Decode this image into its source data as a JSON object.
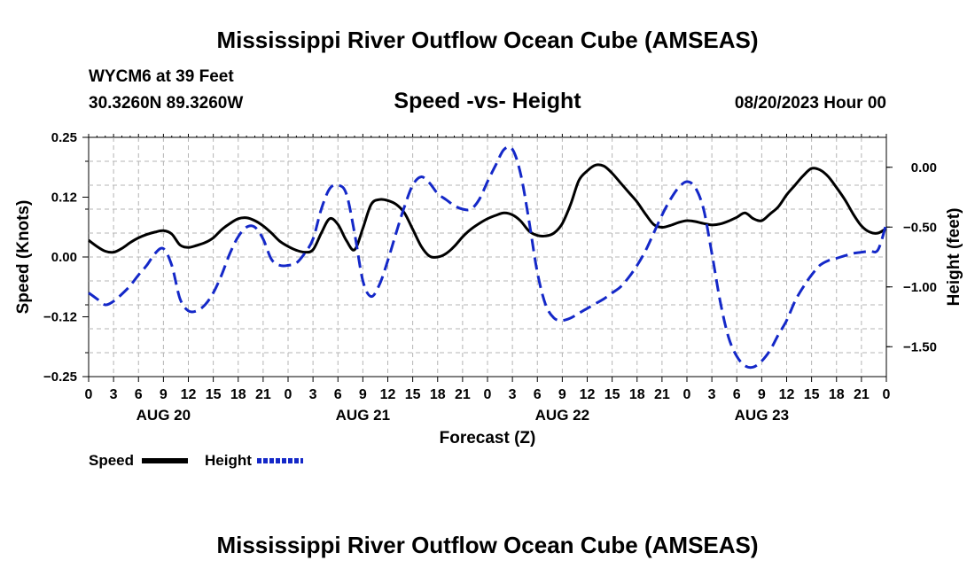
{
  "page": {
    "title_top": "Mississippi River Outflow Ocean Cube (AMSEAS)",
    "title_bottom": "Mississippi River Outflow Ocean Cube (AMSEAS)",
    "station_name": "WYCM6 at 39 Feet",
    "station_coords": "30.3260N  89.3260W",
    "subtitle": "Speed -vs- Height",
    "forecast_date": "08/20/2023 Hour 00"
  },
  "chart_data": {
    "type": "line",
    "title": "Speed -vs- Height",
    "xlabel": "Forecast (Z)",
    "ylabel_left": "Speed (Knots)",
    "ylabel_right": "Height (feet)",
    "x_range_hours": [
      0,
      96
    ],
    "ylim_left": [
      -0.25,
      0.25
    ],
    "ylim_right": [
      -1.75,
      0.25
    ],
    "left_ticks": [
      {
        "value": 0.25,
        "label": "0.25"
      },
      {
        "value": 0.125,
        "label": "0.12"
      },
      {
        "value": 0.0,
        "label": "0.00"
      },
      {
        "value": -0.125,
        "label": "−0.12"
      },
      {
        "value": -0.25,
        "label": "−0.25"
      }
    ],
    "right_ticks": [
      {
        "value": 0.0,
        "label": "0.00"
      },
      {
        "value": -0.5,
        "label": "−0.50"
      },
      {
        "value": -1.0,
        "label": "−1.00"
      },
      {
        "value": -1.5,
        "label": "−1.50"
      }
    ],
    "x_tick_labels": [
      "0",
      "3",
      "6",
      "9",
      "12",
      "15",
      "18",
      "21",
      "0",
      "3",
      "6",
      "9",
      "12",
      "15",
      "18",
      "21",
      "0",
      "3",
      "6",
      "9",
      "12",
      "15",
      "18",
      "21",
      "0",
      "3",
      "6",
      "9",
      "12",
      "15",
      "18",
      "21",
      "0"
    ],
    "day_labels": [
      {
        "label": "AUG 20",
        "hour": 9
      },
      {
        "label": "AUG 21",
        "hour": 33
      },
      {
        "label": "AUG 22",
        "hour": 57
      },
      {
        "label": "AUG 23",
        "hour": 81
      }
    ],
    "grid": true,
    "legend": {
      "position": "bottom-left"
    },
    "series": [
      {
        "name": "Speed",
        "axis": "left",
        "color": "#000000",
        "dash": "solid",
        "x": [
          0,
          1,
          2,
          3,
          4,
          5,
          6,
          7,
          8,
          9,
          10,
          11,
          12,
          13,
          14,
          15,
          16,
          17,
          18,
          19,
          20,
          21,
          22,
          23,
          24,
          25,
          26,
          27,
          28,
          29,
          30,
          31,
          32,
          33,
          34,
          35,
          36,
          37,
          38,
          39,
          40,
          41,
          42,
          43,
          44,
          45,
          46,
          47,
          48,
          49,
          50,
          51,
          52,
          53,
          54,
          55,
          56,
          57,
          58,
          59,
          60,
          61,
          62,
          63,
          64,
          65,
          66,
          67,
          68,
          69,
          70,
          71,
          72,
          73,
          74,
          75,
          76,
          77,
          78,
          79,
          80,
          81,
          82,
          83,
          84,
          85,
          86,
          87,
          88,
          89,
          90,
          91,
          92,
          93,
          94,
          95,
          96
        ],
        "values": [
          0.035,
          0.022,
          0.012,
          0.01,
          0.018,
          0.03,
          0.04,
          0.047,
          0.052,
          0.055,
          0.048,
          0.025,
          0.02,
          0.024,
          0.03,
          0.04,
          0.057,
          0.07,
          0.08,
          0.082,
          0.076,
          0.065,
          0.05,
          0.033,
          0.022,
          0.014,
          0.01,
          0.015,
          0.05,
          0.08,
          0.068,
          0.035,
          0.015,
          0.06,
          0.11,
          0.12,
          0.118,
          0.11,
          0.092,
          0.058,
          0.023,
          0.002,
          0.0,
          0.007,
          0.022,
          0.042,
          0.058,
          0.07,
          0.08,
          0.087,
          0.092,
          0.088,
          0.075,
          0.054,
          0.045,
          0.044,
          0.05,
          0.07,
          0.11,
          0.16,
          0.18,
          0.192,
          0.19,
          0.175,
          0.155,
          0.135,
          0.115,
          0.09,
          0.068,
          0.062,
          0.066,
          0.072,
          0.076,
          0.074,
          0.07,
          0.067,
          0.069,
          0.075,
          0.083,
          0.092,
          0.08,
          0.076,
          0.09,
          0.105,
          0.13,
          0.15,
          0.17,
          0.185,
          0.182,
          0.168,
          0.145,
          0.12,
          0.09,
          0.065,
          0.052,
          0.05,
          0.06
        ]
      },
      {
        "name": "Height",
        "axis": "right",
        "color": "#1428c8",
        "dash": "dashed",
        "x": [
          0,
          1,
          2,
          3,
          4,
          5,
          6,
          7,
          8,
          9,
          10,
          11,
          12,
          13,
          14,
          15,
          16,
          17,
          18,
          19,
          20,
          21,
          22,
          23,
          24,
          25,
          26,
          27,
          28,
          29,
          30,
          31,
          32,
          33,
          34,
          35,
          36,
          37,
          38,
          39,
          40,
          41,
          42,
          43,
          44,
          45,
          46,
          47,
          48,
          49,
          50,
          51,
          52,
          53,
          54,
          55,
          56,
          57,
          58,
          59,
          60,
          61,
          62,
          63,
          64,
          65,
          66,
          67,
          68,
          69,
          70,
          71,
          72,
          73,
          74,
          75,
          76,
          77,
          78,
          79,
          80,
          81,
          82,
          83,
          84,
          85,
          86,
          87,
          88,
          89,
          90,
          91,
          92,
          93,
          94,
          95,
          96
        ],
        "values": [
          -1.05,
          -1.1,
          -1.15,
          -1.12,
          -1.06,
          -0.99,
          -0.9,
          -0.82,
          -0.72,
          -0.68,
          -0.82,
          -1.1,
          -1.2,
          -1.2,
          -1.15,
          -1.05,
          -0.9,
          -0.72,
          -0.58,
          -0.5,
          -0.5,
          -0.6,
          -0.77,
          -0.82,
          -0.82,
          -0.8,
          -0.72,
          -0.6,
          -0.35,
          -0.18,
          -0.15,
          -0.22,
          -0.55,
          -0.95,
          -1.08,
          -0.98,
          -0.78,
          -0.55,
          -0.33,
          -0.15,
          -0.08,
          -0.13,
          -0.22,
          -0.27,
          -0.32,
          -0.35,
          -0.35,
          -0.27,
          -0.12,
          0.02,
          0.15,
          0.15,
          -0.06,
          -0.45,
          -0.88,
          -1.15,
          -1.26,
          -1.28,
          -1.26,
          -1.22,
          -1.18,
          -1.14,
          -1.1,
          -1.05,
          -1.0,
          -0.92,
          -0.82,
          -0.7,
          -0.55,
          -0.4,
          -0.27,
          -0.17,
          -0.12,
          -0.17,
          -0.35,
          -0.72,
          -1.12,
          -1.42,
          -1.58,
          -1.66,
          -1.67,
          -1.62,
          -1.53,
          -1.4,
          -1.28,
          -1.12,
          -1.0,
          -0.9,
          -0.82,
          -0.78,
          -0.76,
          -0.74,
          -0.72,
          -0.71,
          -0.7,
          -0.69,
          -0.47
        ]
      }
    ]
  }
}
